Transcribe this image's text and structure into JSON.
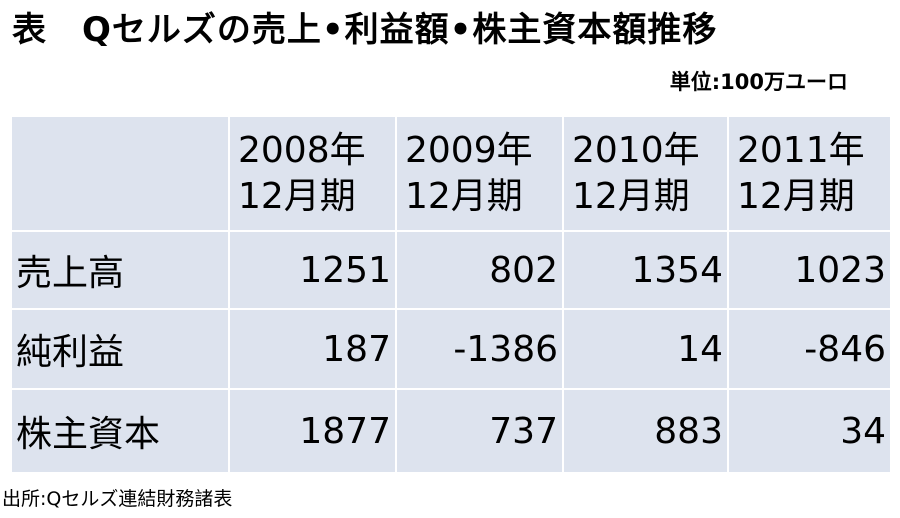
{
  "title": "表　Qセルズの売上•利益額•株主資本額推移",
  "unit": "単位:100万ユーロ",
  "table": {
    "columns": [
      [
        "2008年",
        "12月期"
      ],
      [
        "2009年",
        "12月期"
      ],
      [
        "2010年",
        "12月期"
      ],
      [
        "2011年",
        "12月期"
      ]
    ],
    "rows": [
      {
        "label": "売上高",
        "values": [
          1251,
          802,
          1354,
          1023
        ]
      },
      {
        "label": "純利益",
        "values": [
          187,
          -1386,
          14,
          -846
        ]
      },
      {
        "label": "株主資本",
        "values": [
          1877,
          737,
          883,
          34
        ]
      }
    ]
  },
  "source": "出所:Qセルズ連結財務諸表"
}
